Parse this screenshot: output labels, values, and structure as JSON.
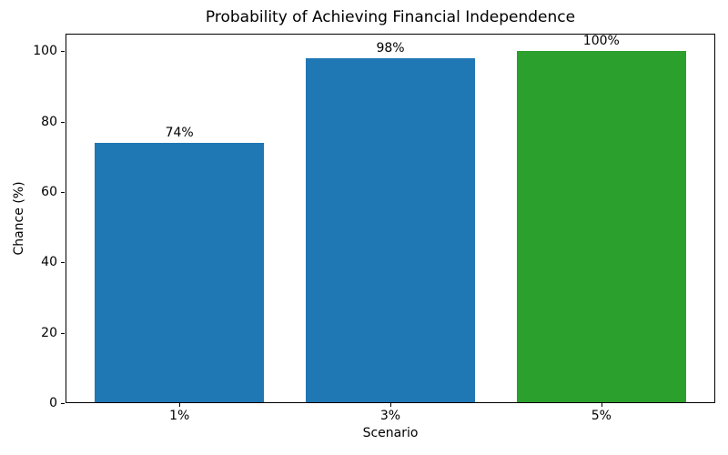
{
  "chart_data": {
    "type": "bar",
    "title": "Probability of Achieving Financial Independence",
    "xlabel": "Scenario",
    "ylabel": "Chance (%)",
    "categories": [
      "1%",
      "3%",
      "5%"
    ],
    "values": [
      74,
      98,
      100
    ],
    "bar_labels": [
      "74%",
      "98%",
      "100%"
    ],
    "bar_colors": [
      "#1f77b4",
      "#1f77b4",
      "#2ca02c"
    ],
    "yticks": [
      0,
      20,
      40,
      60,
      80,
      100
    ],
    "ylim": [
      0,
      105
    ],
    "grid": false,
    "legend": "none",
    "background_color": "#ffffff",
    "text_color": "#000000"
  }
}
